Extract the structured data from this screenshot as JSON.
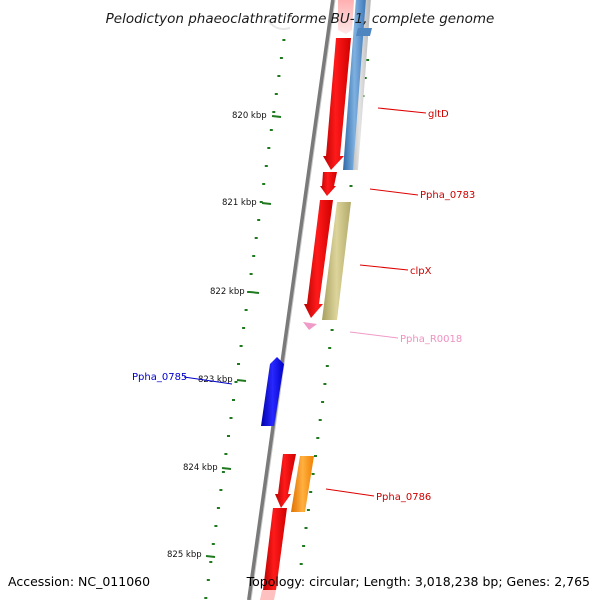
{
  "title": "Pelodictyon phaeoclathratiforme BU-1, complete genome",
  "footer": {
    "accession": "Accession: NC_011060",
    "summary": "Topology: circular; Length: 3,018,238 bp; Genes: 2,765"
  },
  "ruler": {
    "labels": [
      "820 kbp",
      "821 kbp",
      "822 kbp",
      "823 kbp",
      "824 kbp",
      "825 kbp"
    ],
    "tick_color": "#1f7a1f"
  },
  "genes": {
    "gltD": "gltD",
    "ppha_0783": "Ppha_0783",
    "clpX": "clpX",
    "ppha_r0018": "Ppha_R0018",
    "ppha_0785": "Ppha_0785",
    "ppha_0786": "Ppha_0786"
  },
  "colors": {
    "cds_red": "#ff0000",
    "rna_pink": "#f09ac8",
    "cds_blue": "#0000ee",
    "blast_steel": "#4f86c0",
    "blast_olive": "#c0b878",
    "blast_orange": "#ff8800",
    "backbone": "#8a8a8a"
  }
}
